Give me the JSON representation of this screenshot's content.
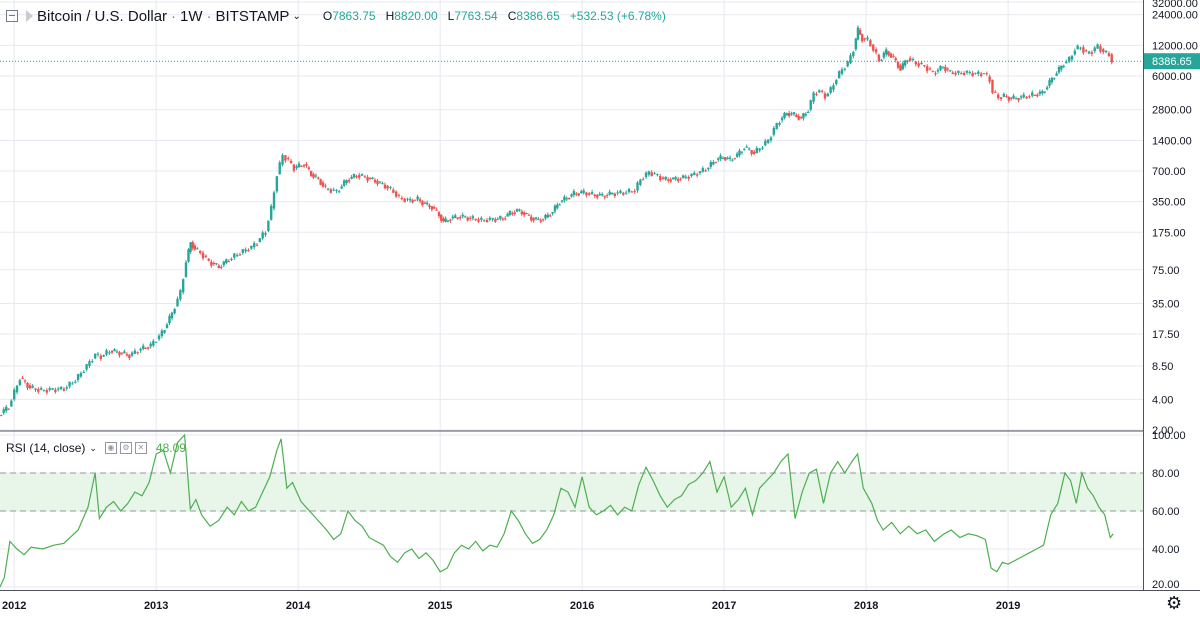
{
  "header": {
    "symbol": "Bitcoin / U.S. Dollar",
    "interval": "1W",
    "exchange": "BITSTAMP",
    "open_label": "O",
    "open_value": "7863.75",
    "high_label": "H",
    "high_value": "8820.00",
    "low_label": "L",
    "low_value": "7763.54",
    "close_label": "C",
    "close_value": "8386.65",
    "change": "+532.53 (+6.78%)"
  },
  "rsi_header": {
    "label": "RSI (14, close)",
    "value": "48.09"
  },
  "colors": {
    "up": "#26a69a",
    "down": "#ef5350",
    "rsi_line": "#4caf50",
    "rsi_band": "#e8f5e9",
    "price_label_bg": "#26a69a",
    "grid": "#e6e9f0"
  },
  "chart_data": [
    {
      "type": "candlestick",
      "title": "Bitcoin / U.S. Dollar · 1W · BITSTAMP",
      "y_scale": "log",
      "ylim": [
        2,
        32000
      ],
      "y_ticks": [
        2,
        4,
        8.5,
        17.5,
        35,
        75,
        175,
        350,
        700,
        1400,
        2800,
        6000,
        12000,
        24000,
        32000
      ],
      "y_tick_labels": [
        "2.00",
        "4.00",
        "8.50",
        "17.50",
        "35.00",
        "75.00",
        "175.00",
        "350.00",
        "700.00",
        "1400.00",
        "2800.00",
        "6000.00",
        "12000.00",
        "24000.00",
        "32000.00"
      ],
      "x_range": [
        2011.9,
        2019.95
      ],
      "x_tick_labels": [
        "2012",
        "2013",
        "2014",
        "2015",
        "2016",
        "2017",
        "2018",
        "2019"
      ],
      "x_ticks": [
        2012,
        2013,
        2014,
        2015,
        2016,
        2017,
        2018,
        2019
      ],
      "last_price": 8386.65,
      "last_price_label": "8386.65",
      "close_series": [
        [
          2011.9,
          2.8
        ],
        [
          2011.97,
          3.4
        ],
        [
          2012.05,
          6.5
        ],
        [
          2012.12,
          5.2
        ],
        [
          2012.2,
          4.9
        ],
        [
          2012.28,
          5.0
        ],
        [
          2012.36,
          5.1
        ],
        [
          2012.44,
          6.2
        ],
        [
          2012.52,
          8.5
        ],
        [
          2012.58,
          11.0
        ],
        [
          2012.62,
          10.5
        ],
        [
          2012.68,
          12.0
        ],
        [
          2012.75,
          11.5
        ],
        [
          2012.82,
          10.8
        ],
        [
          2012.9,
          12.5
        ],
        [
          2012.97,
          13.5
        ],
        [
          2013.05,
          18
        ],
        [
          2013.12,
          28
        ],
        [
          2013.18,
          45
        ],
        [
          2013.22,
          90
        ],
        [
          2013.25,
          140
        ],
        [
          2013.28,
          120
        ],
        [
          2013.32,
          110
        ],
        [
          2013.38,
          90
        ],
        [
          2013.45,
          80
        ],
        [
          2013.52,
          95
        ],
        [
          2013.6,
          110
        ],
        [
          2013.68,
          125
        ],
        [
          2013.72,
          140
        ],
        [
          2013.78,
          180
        ],
        [
          2013.82,
          300
        ],
        [
          2013.86,
          650
        ],
        [
          2013.9,
          1000
        ],
        [
          2013.94,
          880
        ],
        [
          2013.98,
          750
        ],
        [
          2014.05,
          820
        ],
        [
          2014.1,
          650
        ],
        [
          2014.15,
          580
        ],
        [
          2014.2,
          470
        ],
        [
          2014.28,
          440
        ],
        [
          2014.35,
          570
        ],
        [
          2014.42,
          640
        ],
        [
          2014.48,
          610
        ],
        [
          2014.55,
          560
        ],
        [
          2014.62,
          500
        ],
        [
          2014.68,
          440
        ],
        [
          2014.72,
          380
        ],
        [
          2014.78,
          360
        ],
        [
          2014.85,
          370
        ],
        [
          2014.9,
          330
        ],
        [
          2014.95,
          310
        ],
        [
          2015.0,
          260
        ],
        [
          2015.03,
          220
        ],
        [
          2015.08,
          240
        ],
        [
          2015.15,
          250
        ],
        [
          2015.22,
          240
        ],
        [
          2015.3,
          230
        ],
        [
          2015.38,
          235
        ],
        [
          2015.45,
          240
        ],
        [
          2015.5,
          270
        ],
        [
          2015.55,
          285
        ],
        [
          2015.6,
          270
        ],
        [
          2015.65,
          240
        ],
        [
          2015.7,
          230
        ],
        [
          2015.75,
          245
        ],
        [
          2015.8,
          280
        ],
        [
          2015.85,
          350
        ],
        [
          2015.9,
          380
        ],
        [
          2015.95,
          420
        ],
        [
          2016.02,
          430
        ],
        [
          2016.08,
          410
        ],
        [
          2016.15,
          400
        ],
        [
          2016.22,
          420
        ],
        [
          2016.3,
          430
        ],
        [
          2016.38,
          450
        ],
        [
          2016.42,
          580
        ],
        [
          2016.48,
          680
        ],
        [
          2016.52,
          650
        ],
        [
          2016.58,
          580
        ],
        [
          2016.65,
          580
        ],
        [
          2016.72,
          600
        ],
        [
          2016.8,
          650
        ],
        [
          2016.88,
          730
        ],
        [
          2016.95,
          900
        ],
        [
          2017.0,
          960
        ],
        [
          2017.05,
          900
        ],
        [
          2017.1,
          1000
        ],
        [
          2017.15,
          1200
        ],
        [
          2017.22,
          1050
        ],
        [
          2017.28,
          1250
        ],
        [
          2017.32,
          1400
        ],
        [
          2017.36,
          1800
        ],
        [
          2017.4,
          2200
        ],
        [
          2017.45,
          2600
        ],
        [
          2017.5,
          2500
        ],
        [
          2017.55,
          2300
        ],
        [
          2017.6,
          2800
        ],
        [
          2017.64,
          4000
        ],
        [
          2017.68,
          4300
        ],
        [
          2017.72,
          3800
        ],
        [
          2017.76,
          4400
        ],
        [
          2017.8,
          5700
        ],
        [
          2017.84,
          7000
        ],
        [
          2017.88,
          8000
        ],
        [
          2017.92,
          11000
        ],
        [
          2017.95,
          17000
        ],
        [
          2017.98,
          14000
        ],
        [
          2018.02,
          13500
        ],
        [
          2018.06,
          11000
        ],
        [
          2018.1,
          8500
        ],
        [
          2018.15,
          10500
        ],
        [
          2018.2,
          9000
        ],
        [
          2018.25,
          7000
        ],
        [
          2018.3,
          9000
        ],
        [
          2018.36,
          8000
        ],
        [
          2018.42,
          7500
        ],
        [
          2018.48,
          6400
        ],
        [
          2018.55,
          7400
        ],
        [
          2018.6,
          6500
        ],
        [
          2018.66,
          6400
        ],
        [
          2018.72,
          6500
        ],
        [
          2018.78,
          6300
        ],
        [
          2018.84,
          6400
        ],
        [
          2018.88,
          5500
        ],
        [
          2018.9,
          4200
        ],
        [
          2018.94,
          3700
        ],
        [
          2018.98,
          3800
        ],
        [
          2019.03,
          3600
        ],
        [
          2019.1,
          3700
        ],
        [
          2019.18,
          3900
        ],
        [
          2019.25,
          4100
        ],
        [
          2019.3,
          5200
        ],
        [
          2019.35,
          6500
        ],
        [
          2019.4,
          8000
        ],
        [
          2019.44,
          8700
        ],
        [
          2019.48,
          11000
        ],
        [
          2019.52,
          11500
        ],
        [
          2019.56,
          10000
        ],
        [
          2019.6,
          10500
        ],
        [
          2019.64,
          11800
        ],
        [
          2019.68,
          10300
        ],
        [
          2019.72,
          9800
        ],
        [
          2019.74,
          8386.65
        ]
      ]
    },
    {
      "type": "line",
      "title": "RSI (14, close)",
      "ylim": [
        20,
        100
      ],
      "y_ticks": [
        20,
        40,
        60,
        80,
        100
      ],
      "y_tick_labels": [
        "20.00",
        "40.00",
        "60.00",
        "80.00",
        "100.00"
      ],
      "band": [
        60,
        80
      ],
      "last_value": 48.09,
      "x_range": [
        2011.9,
        2019.95
      ],
      "series": [
        [
          2011.9,
          20
        ],
        [
          2011.93,
          25
        ],
        [
          2011.97,
          44
        ],
        [
          2012.02,
          40
        ],
        [
          2012.07,
          37
        ],
        [
          2012.12,
          41
        ],
        [
          2012.2,
          40
        ],
        [
          2012.28,
          42
        ],
        [
          2012.35,
          43
        ],
        [
          2012.45,
          50
        ],
        [
          2012.52,
          62
        ],
        [
          2012.57,
          80
        ],
        [
          2012.6,
          56
        ],
        [
          2012.65,
          62
        ],
        [
          2012.7,
          65
        ],
        [
          2012.75,
          60
        ],
        [
          2012.8,
          64
        ],
        [
          2012.85,
          70
        ],
        [
          2012.9,
          68
        ],
        [
          2012.95,
          75
        ],
        [
          2013.0,
          90
        ],
        [
          2013.05,
          92
        ],
        [
          2013.1,
          80
        ],
        [
          2013.15,
          96
        ],
        [
          2013.2,
          100
        ],
        [
          2013.24,
          61
        ],
        [
          2013.28,
          66
        ],
        [
          2013.32,
          58
        ],
        [
          2013.38,
          52
        ],
        [
          2013.44,
          55
        ],
        [
          2013.5,
          62
        ],
        [
          2013.55,
          58
        ],
        [
          2013.6,
          65
        ],
        [
          2013.65,
          60
        ],
        [
          2013.7,
          62
        ],
        [
          2013.75,
          70
        ],
        [
          2013.8,
          78
        ],
        [
          2013.85,
          92
        ],
        [
          2013.88,
          98
        ],
        [
          2013.92,
          72
        ],
        [
          2013.96,
          75
        ],
        [
          2014.02,
          65
        ],
        [
          2014.08,
          60
        ],
        [
          2014.14,
          55
        ],
        [
          2014.2,
          50
        ],
        [
          2014.25,
          45
        ],
        [
          2014.3,
          48
        ],
        [
          2014.35,
          60
        ],
        [
          2014.4,
          55
        ],
        [
          2014.45,
          52
        ],
        [
          2014.5,
          46
        ],
        [
          2014.55,
          44
        ],
        [
          2014.6,
          42
        ],
        [
          2014.65,
          36
        ],
        [
          2014.7,
          33
        ],
        [
          2014.75,
          38
        ],
        [
          2014.8,
          40
        ],
        [
          2014.85,
          35
        ],
        [
          2014.9,
          38
        ],
        [
          2014.95,
          34
        ],
        [
          2015.0,
          28
        ],
        [
          2015.05,
          30
        ],
        [
          2015.1,
          38
        ],
        [
          2015.15,
          42
        ],
        [
          2015.2,
          40
        ],
        [
          2015.25,
          44
        ],
        [
          2015.3,
          39
        ],
        [
          2015.35,
          42
        ],
        [
          2015.4,
          41
        ],
        [
          2015.45,
          48
        ],
        [
          2015.5,
          60
        ],
        [
          2015.55,
          55
        ],
        [
          2015.6,
          48
        ],
        [
          2015.65,
          43
        ],
        [
          2015.7,
          45
        ],
        [
          2015.75,
          50
        ],
        [
          2015.8,
          58
        ],
        [
          2015.85,
          72
        ],
        [
          2015.9,
          70
        ],
        [
          2015.95,
          62
        ],
        [
          2016.0,
          78
        ],
        [
          2016.05,
          62
        ],
        [
          2016.1,
          58
        ],
        [
          2016.15,
          60
        ],
        [
          2016.2,
          63
        ],
        [
          2016.25,
          58
        ],
        [
          2016.3,
          62
        ],
        [
          2016.35,
          60
        ],
        [
          2016.4,
          74
        ],
        [
          2016.45,
          83
        ],
        [
          2016.5,
          76
        ],
        [
          2016.55,
          68
        ],
        [
          2016.6,
          62
        ],
        [
          2016.65,
          66
        ],
        [
          2016.7,
          68
        ],
        [
          2016.75,
          74
        ],
        [
          2016.8,
          76
        ],
        [
          2016.85,
          80
        ],
        [
          2016.9,
          86
        ],
        [
          2016.95,
          70
        ],
        [
          2017.0,
          78
        ],
        [
          2017.05,
          62
        ],
        [
          2017.1,
          66
        ],
        [
          2017.15,
          72
        ],
        [
          2017.2,
          58
        ],
        [
          2017.25,
          72
        ],
        [
          2017.3,
          76
        ],
        [
          2017.35,
          80
        ],
        [
          2017.4,
          86
        ],
        [
          2017.45,
          90
        ],
        [
          2017.5,
          56
        ],
        [
          2017.55,
          70
        ],
        [
          2017.6,
          80
        ],
        [
          2017.65,
          82
        ],
        [
          2017.7,
          64
        ],
        [
          2017.75,
          80
        ],
        [
          2017.8,
          86
        ],
        [
          2017.85,
          80
        ],
        [
          2017.9,
          86
        ],
        [
          2017.94,
          90
        ],
        [
          2017.98,
          72
        ],
        [
          2018.04,
          64
        ],
        [
          2018.08,
          55
        ],
        [
          2018.12,
          50
        ],
        [
          2018.18,
          54
        ],
        [
          2018.24,
          48
        ],
        [
          2018.3,
          52
        ],
        [
          2018.36,
          48
        ],
        [
          2018.42,
          50
        ],
        [
          2018.48,
          44
        ],
        [
          2018.55,
          48
        ],
        [
          2018.6,
          50
        ],
        [
          2018.66,
          46
        ],
        [
          2018.72,
          48
        ],
        [
          2018.78,
          47
        ],
        [
          2018.84,
          45
        ],
        [
          2018.88,
          30
        ],
        [
          2018.92,
          28
        ],
        [
          2018.96,
          33
        ],
        [
          2019.0,
          32
        ],
        [
          2019.05,
          34
        ],
        [
          2019.1,
          36
        ],
        [
          2019.15,
          38
        ],
        [
          2019.2,
          40
        ],
        [
          2019.25,
          42
        ],
        [
          2019.3,
          58
        ],
        [
          2019.35,
          64
        ],
        [
          2019.4,
          80
        ],
        [
          2019.44,
          76
        ],
        [
          2019.48,
          64
        ],
        [
          2019.52,
          80
        ],
        [
          2019.56,
          72
        ],
        [
          2019.6,
          68
        ],
        [
          2019.64,
          62
        ],
        [
          2019.68,
          58
        ],
        [
          2019.72,
          46
        ],
        [
          2019.74,
          48
        ]
      ]
    }
  ]
}
